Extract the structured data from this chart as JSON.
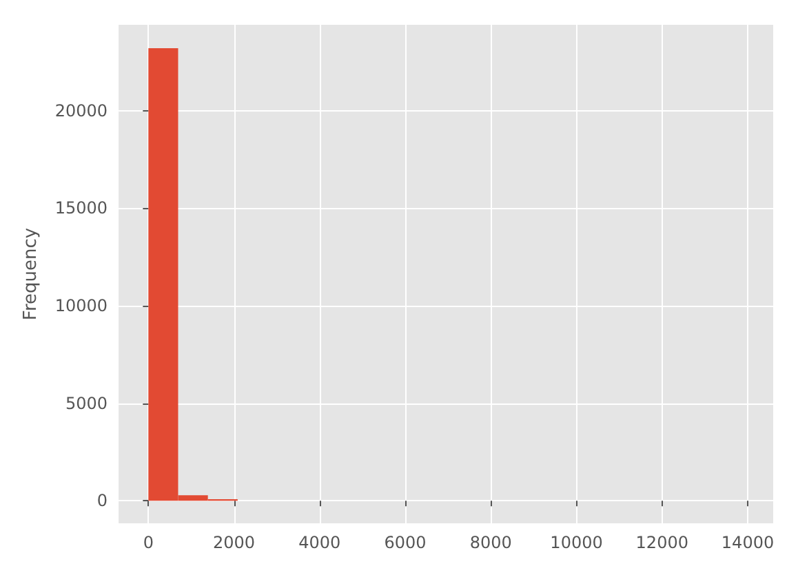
{
  "chart_data": {
    "type": "histogram",
    "ylabel": "Frequency",
    "color": "#e24a33",
    "bins": [
      0,
      695,
      1390,
      2085,
      2780,
      3475,
      4170,
      4865,
      5560,
      6255,
      6950,
      7645,
      8340,
      9035,
      9730,
      10425,
      11120,
      11815,
      12510,
      13205,
      13900
    ],
    "values": [
      23200,
      280,
      80,
      0,
      0,
      0,
      0,
      0,
      0,
      0,
      0,
      0,
      0,
      0,
      0,
      0,
      0,
      0,
      0,
      0
    ],
    "xlim": [
      -695,
      14595
    ],
    "ylim": [
      -1160,
      24400
    ],
    "xticks": [
      0,
      2000,
      4000,
      6000,
      8000,
      10000,
      12000,
      14000
    ],
    "yticks": [
      0,
      5000,
      10000,
      15000,
      20000
    ],
    "grid": true
  }
}
